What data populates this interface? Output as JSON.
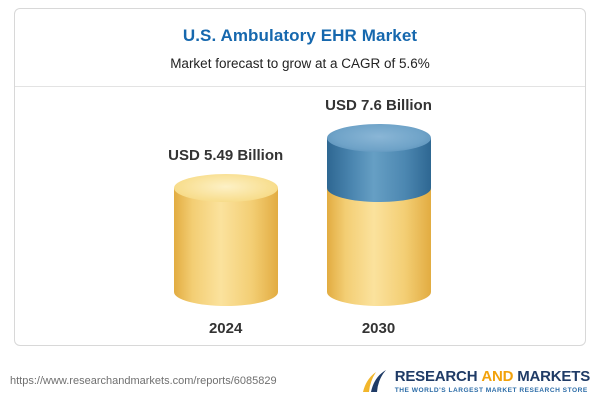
{
  "chart_data": {
    "type": "bar",
    "bar_style": "cylinder",
    "title": "U.S. Ambulatory EHR Market",
    "subtitle": "Market forecast to grow at a CAGR of 5.6%",
    "categories": [
      "2024",
      "2030"
    ],
    "values": [
      5.49,
      7.6
    ],
    "value_labels": [
      "USD 5.49 Billion",
      "USD 7.6 Billion"
    ],
    "unit": "USD Billion",
    "cagr_percent": 5.6,
    "ylim": [
      0,
      7.6
    ],
    "grid": false,
    "legend_position": "none",
    "colors": {
      "bar_base": "#F3CE74",
      "bar_growth_top": "#4C87B1",
      "title_text": "#1668AE"
    }
  },
  "footer": {
    "url": "https://www.researchandmarkets.com/reports/6085829",
    "logo": {
      "word1": "RESEARCH",
      "word2": "AND",
      "word3": "MARKETS",
      "tagline": "THE WORLD'S LARGEST MARKET RESEARCH STORE",
      "color_primary": "#1F3B66",
      "color_accent": "#F2A20C"
    }
  }
}
